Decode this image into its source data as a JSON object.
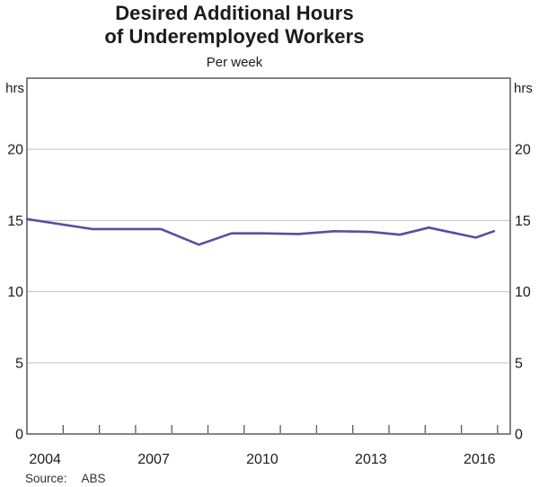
{
  "header": {
    "title_line1": "Desired Additional Hours",
    "title_line2": "of Underemployed Workers",
    "subtitle": "Per week"
  },
  "footer": {
    "source_label": "Source:",
    "source_value": "ABS"
  },
  "chart_data": {
    "type": "line",
    "title": "Desired Additional Hours of Underemployed Workers",
    "subtitle": "Per week",
    "unit": "hrs",
    "y_axis": {
      "label_left": "hrs",
      "label_right": "hrs",
      "min": 0,
      "max": 25,
      "tick_labels": [
        0,
        5,
        10,
        15,
        20
      ],
      "gridlines": [
        5,
        10,
        15,
        20
      ],
      "grid": true
    },
    "x_axis": {
      "min": 2004.0,
      "max": 2017.35,
      "year_ticks": [
        2005,
        2006,
        2007,
        2008,
        2009,
        2010,
        2011,
        2012,
        2013,
        2014,
        2015,
        2016,
        2017
      ],
      "labels": [
        {
          "text": "2004",
          "x": 2004.5
        },
        {
          "text": "2007",
          "x": 2007.5
        },
        {
          "text": "2010",
          "x": 2010.5
        },
        {
          "text": "2013",
          "x": 2013.5
        },
        {
          "text": "2016",
          "x": 2016.5
        }
      ]
    },
    "series": [
      {
        "name": "Desired additional hours of underemployed workers",
        "color": "#5b4da1",
        "points": [
          [
            2004.0,
            15.1
          ],
          [
            2005.8,
            14.4
          ],
          [
            2007.7,
            14.4
          ],
          [
            2008.75,
            13.3
          ],
          [
            2009.65,
            14.1
          ],
          [
            2010.5,
            14.1
          ],
          [
            2011.5,
            14.05
          ],
          [
            2012.5,
            14.25
          ],
          [
            2013.5,
            14.2
          ],
          [
            2014.3,
            14.0
          ],
          [
            2015.1,
            14.5
          ],
          [
            2016.4,
            13.8
          ],
          [
            2016.9,
            14.25
          ]
        ]
      }
    ],
    "legend": "none",
    "source": "ABS",
    "colors": {
      "line": "#5b4da1",
      "grid": "#c9c9cc",
      "axis": "#5a5a5e",
      "text": "#1c1c1e"
    }
  }
}
